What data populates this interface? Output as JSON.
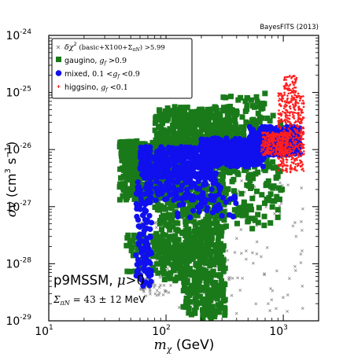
{
  "credit": "BayesFITS (2013)",
  "chart_data": {
    "type": "scatter",
    "xscale": "log",
    "yscale": "log",
    "xlim": [
      10,
      2000
    ],
    "ylim": [
      1e-29,
      1e-24
    ],
    "x_ticks": [
      {
        "value": 10,
        "base": "10",
        "exp": "1"
      },
      {
        "value": 100,
        "base": "10",
        "exp": "2"
      },
      {
        "value": 1000,
        "base": "10",
        "exp": "3"
      }
    ],
    "y_ticks": [
      {
        "value": 1e-29,
        "base": "10",
        "exp": "-29"
      },
      {
        "value": 1e-28,
        "base": "10",
        "exp": "-28"
      },
      {
        "value": 1e-27,
        "base": "10",
        "exp": "-27"
      },
      {
        "value": 1e-26,
        "base": "10",
        "exp": "-26"
      },
      {
        "value": 1e-25,
        "base": "10",
        "exp": "-25"
      },
      {
        "value": 1e-24,
        "base": "10",
        "exp": "-24"
      }
    ],
    "xlabel": {
      "sym": "m",
      "sub": "χ",
      "unit": " (GeV)"
    },
    "ylabel": {
      "sym": "σv",
      "unit": " (cm",
      "sup1": "3",
      "mid": " s",
      "sup2": "−1",
      "end": ")"
    },
    "legend_position": "top-left",
    "legend": [
      {
        "series": "excluded",
        "text": "δχ² (basic+X100+Σ_πN) >5.99"
      },
      {
        "series": "gaugino",
        "text": "gaugino, g_f >0.9"
      },
      {
        "series": "mixed",
        "text": "mixed, 0.1 <g_f <0.9"
      },
      {
        "series": "higgsino",
        "text": "higgsino, g_f <0.1"
      }
    ],
    "annotations": [
      {
        "text": "p9MSSM, μ>0"
      },
      {
        "text": "Σ_πN = 43 ± 12 MeV"
      }
    ],
    "series": [
      {
        "name": "excluded",
        "marker": "x",
        "color": "#888888",
        "regions": [
          {
            "xr": [
              60,
              110
            ],
            "yr": [
              -28.6,
              -27.2
            ],
            "n": 120
          },
          {
            "xr": [
              100,
              1500
            ],
            "yr": [
              -28.9,
              -26.4
            ],
            "n": 140
          },
          {
            "xr": [
              60,
              80
            ],
            "yr": [
              -28.5,
              -28.0
            ],
            "n": 30
          }
        ]
      },
      {
        "name": "gaugino",
        "marker": "square",
        "color": "#1a7a1a",
        "regions": [
          {
            "xr": [
              40,
              140
            ],
            "yr": [
              -26.9,
              -25.85
            ],
            "n": 500
          },
          {
            "xr": [
              80,
              400
            ],
            "yr": [
              -26.0,
              -25.25
            ],
            "n": 350
          },
          {
            "xr": [
              45,
              90
            ],
            "yr": [
              -28.2,
              -27.5
            ],
            "n": 60
          },
          {
            "xr": [
              80,
              140
            ],
            "yr": [
              -27.8,
              -26.5
            ],
            "n": 150
          },
          {
            "xr": [
              140,
              320
            ],
            "yr": [
              -29.0,
              -26.6
            ],
            "n": 500
          },
          {
            "xr": [
              90,
              200
            ],
            "yr": [
              -28.3,
              -27.6
            ],
            "n": 120
          },
          {
            "xr": [
              250,
              1000
            ],
            "yr": [
              -27.4,
              -25.4
            ],
            "n": 250
          },
          {
            "xr": [
              300,
              700
            ],
            "yr": [
              -25.0,
              -25.5
            ],
            "n": 30
          }
        ]
      },
      {
        "name": "mixed",
        "marker": "circle",
        "color": "#1010ee",
        "regions": [
          {
            "xr": [
              55,
              75
            ],
            "yr": [
              -28.4,
              -26.5
            ],
            "n": 120
          },
          {
            "xr": [
              60,
              250
            ],
            "yr": [
              -26.5,
              -25.95
            ],
            "n": 350
          },
          {
            "xr": [
              200,
              700
            ],
            "yr": [
              -26.3,
              -25.8
            ],
            "n": 400
          },
          {
            "xr": [
              500,
              1400
            ],
            "yr": [
              -26.1,
              -25.6
            ],
            "n": 300
          },
          {
            "xr": [
              80,
              300
            ],
            "yr": [
              -26.9,
              -26.4
            ],
            "n": 120
          },
          {
            "xr": [
              120,
              400
            ],
            "yr": [
              -27.2,
              -26.8
            ],
            "n": 40
          }
        ]
      },
      {
        "name": "higgsino",
        "marker": "dot",
        "color": "#ff1f1f",
        "regions": [
          {
            "xr": [
              650,
              1100
            ],
            "yr": [
              -26.1,
              -25.7
            ],
            "n": 300
          },
          {
            "xr": [
              900,
              1500
            ],
            "yr": [
              -26.4,
              -25.0
            ],
            "n": 450
          },
          {
            "xr": [
              1000,
              1300
            ],
            "yr": [
              -25.0,
              -24.7
            ],
            "n": 50
          }
        ]
      }
    ]
  }
}
